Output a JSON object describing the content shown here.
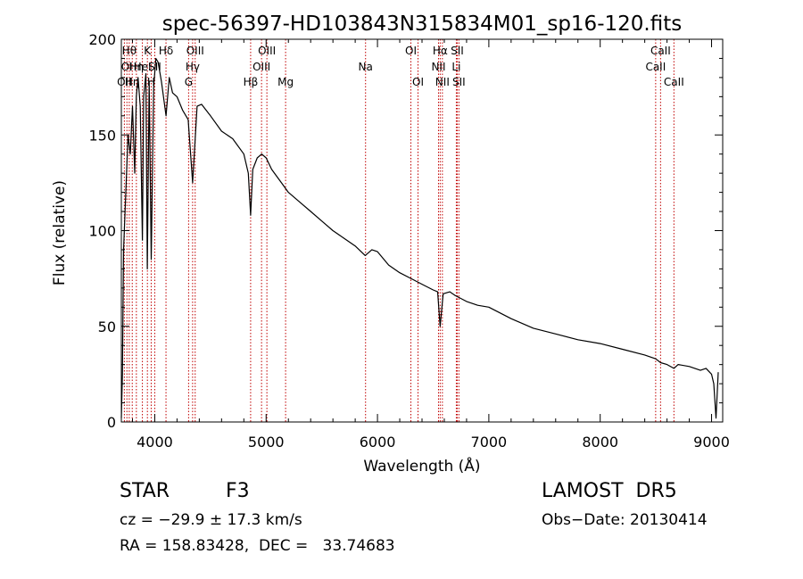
{
  "chart_data": {
    "type": "line",
    "title": "spec-56397-HD103843N315834M01_sp16-120.fits",
    "xlabel": "Wavelength (Å)",
    "ylabel": "Flux (relative)",
    "xlim": [
      3700,
      9100
    ],
    "ylim": [
      0,
      200
    ],
    "xticks": [
      4000,
      5000,
      6000,
      7000,
      8000,
      9000
    ],
    "yticks": [
      0,
      50,
      100,
      150,
      200
    ],
    "grid": false,
    "legend": "none",
    "line_color": "#000000",
    "marker_color": "#c00000",
    "series": [
      {
        "x": [
          3700,
          3710,
          3720,
          3740,
          3760,
          3780,
          3800,
          3820,
          3835,
          3850,
          3870,
          3889,
          3900,
          3920,
          3933,
          3950,
          3968,
          3990,
          4010,
          4030,
          4060,
          4101,
          4130,
          4160,
          4200,
          4250,
          4300,
          4340,
          4380,
          4420,
          4500,
          4600,
          4700,
          4800,
          4840,
          4861,
          4880,
          4920,
          4960,
          5000,
          5050,
          5100,
          5150,
          5200,
          5300,
          5400,
          5500,
          5600,
          5700,
          5800,
          5890,
          5950,
          6000,
          6100,
          6200,
          6300,
          6400,
          6500,
          6540,
          6563,
          6590,
          6650,
          6700,
          6800,
          6900,
          7000,
          7200,
          7400,
          7600,
          7800,
          8000,
          8200,
          8400,
          8498,
          8542,
          8600,
          8662,
          8700,
          8800,
          8900,
          8950,
          9000,
          9020,
          9040,
          9060
        ],
        "y": [
          2,
          25,
          90,
          120,
          150,
          140,
          165,
          130,
          170,
          180,
          165,
          95,
          170,
          182,
          80,
          178,
          85,
          175,
          190,
          188,
          178,
          160,
          180,
          172,
          170,
          163,
          158,
          125,
          165,
          166,
          160,
          152,
          148,
          140,
          130,
          108,
          132,
          138,
          140,
          138,
          132,
          128,
          124,
          120,
          115,
          110,
          105,
          100,
          96,
          92,
          87,
          90,
          89,
          82,
          78,
          75,
          72,
          69,
          68,
          50,
          67,
          68,
          66,
          63,
          61,
          60,
          54,
          49,
          46,
          43,
          41,
          38,
          35,
          33,
          31,
          30,
          28,
          30,
          29,
          27,
          28,
          25,
          20,
          2,
          26
        ]
      }
    ],
    "line_markers": [
      {
        "wavelength": 3727,
        "label": "OII",
        "row": 2
      },
      {
        "wavelength": 3750,
        "label": "OI",
        "row": 1
      },
      {
        "wavelength": 3771,
        "label": "Hθ",
        "row": 0
      },
      {
        "wavelength": 3798,
        "label": "Hη",
        "row": 2
      },
      {
        "wavelength": 3835,
        "label": "Hη",
        "row": 1
      },
      {
        "wavelength": 3889,
        "label": "HeI",
        "row": 1
      },
      {
        "wavelength": 3934,
        "label": "K",
        "row": 0
      },
      {
        "wavelength": 3968,
        "label": "H",
        "row": 2
      },
      {
        "wavelength": 4000,
        "label": "SII",
        "row": 1
      },
      {
        "wavelength": 4101,
        "label": "Hδ",
        "row": 0
      },
      {
        "wavelength": 4304,
        "label": "G",
        "row": 2
      },
      {
        "wavelength": 4340,
        "label": "Hγ",
        "row": 1
      },
      {
        "wavelength": 4363,
        "label": "OIII",
        "row": 0
      },
      {
        "wavelength": 4861,
        "label": "Hβ",
        "row": 2
      },
      {
        "wavelength": 4959,
        "label": "OIII",
        "row": 1
      },
      {
        "wavelength": 5007,
        "label": "OIII",
        "row": 0
      },
      {
        "wavelength": 5175,
        "label": "Mg",
        "row": 2
      },
      {
        "wavelength": 5893,
        "label": "Na",
        "row": 1
      },
      {
        "wavelength": 6300,
        "label": "OI",
        "row": 0
      },
      {
        "wavelength": 6364,
        "label": "OI",
        "row": 2
      },
      {
        "wavelength": 6548,
        "label": "NII",
        "row": 1
      },
      {
        "wavelength": 6563,
        "label": "Hα",
        "row": 0
      },
      {
        "wavelength": 6583,
        "label": "NII",
        "row": 2
      },
      {
        "wavelength": 6708,
        "label": "Li",
        "row": 1
      },
      {
        "wavelength": 6716,
        "label": "SII",
        "row": 0
      },
      {
        "wavelength": 6731,
        "label": "SII",
        "row": 2
      },
      {
        "wavelength": 8498,
        "label": "CaII",
        "row": 1
      },
      {
        "wavelength": 8542,
        "label": "CaII",
        "row": 0
      },
      {
        "wavelength": 8662,
        "label": "CaII",
        "row": 2
      }
    ]
  },
  "info": {
    "object_class": "STAR",
    "subclass": "F3",
    "survey": "LAMOST  DR5",
    "redshift": "cz = −29.9 ± 17.3 km/s",
    "obs_date": "Obs−Date: 20130414",
    "radec": "RA = 158.83428,  DEC =   33.74683"
  }
}
